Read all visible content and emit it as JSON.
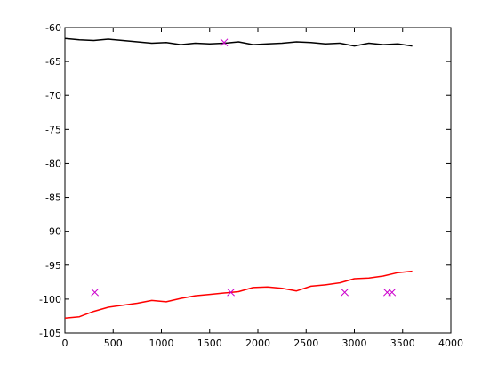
{
  "chart_data": {
    "type": "line",
    "title": "",
    "xlabel": "",
    "ylabel": "",
    "xlim": [
      0,
      4000
    ],
    "ylim": [
      -105,
      -60
    ],
    "xticks": [
      0,
      500,
      1000,
      1500,
      2000,
      2500,
      3000,
      3500,
      4000
    ],
    "yticks": [
      -60,
      -65,
      -70,
      -75,
      -80,
      -85,
      -90,
      -95,
      -100,
      -105
    ],
    "grid": false,
    "legend": "none",
    "series": [
      {
        "color": "#000000",
        "style": "line",
        "x": [
          0,
          150,
          300,
          450,
          600,
          750,
          900,
          1050,
          1200,
          1350,
          1500,
          1650,
          1800,
          1950,
          2100,
          2250,
          2400,
          2550,
          2700,
          2850,
          3000,
          3150,
          3300,
          3450,
          3600
        ],
        "y": [
          -61.6,
          -61.8,
          -61.9,
          -61.7,
          -61.9,
          -62.1,
          -62.3,
          -62.2,
          -62.5,
          -62.3,
          -62.4,
          -62.3,
          -62.1,
          -62.5,
          -62.4,
          -62.3,
          -62.1,
          -62.2,
          -62.4,
          -62.3,
          -62.7,
          -62.3,
          -62.5,
          -62.4,
          -62.7
        ]
      },
      {
        "color": "#ff0000",
        "style": "line",
        "x": [
          0,
          150,
          300,
          450,
          600,
          750,
          900,
          1050,
          1200,
          1350,
          1500,
          1650,
          1800,
          1950,
          2100,
          2250,
          2400,
          2550,
          2700,
          2850,
          3000,
          3150,
          3300,
          3450,
          3600
        ],
        "y": [
          -102.8,
          -102.6,
          -101.8,
          -101.2,
          -100.9,
          -100.6,
          -100.2,
          -100.4,
          -99.9,
          -99.5,
          -99.3,
          -99.1,
          -98.9,
          -98.3,
          -98.2,
          -98.4,
          -98.8,
          -98.1,
          -97.9,
          -97.6,
          -97.0,
          -96.9,
          -96.6,
          -96.1,
          -95.9
        ]
      },
      {
        "color": "#cc00cc",
        "style": "marker-x",
        "x": [
          310,
          1650,
          1720,
          2900,
          3340,
          3390
        ],
        "y": [
          -99.0,
          -62.2,
          -99.0,
          -99.0,
          -99.0,
          -99.0
        ]
      }
    ]
  }
}
